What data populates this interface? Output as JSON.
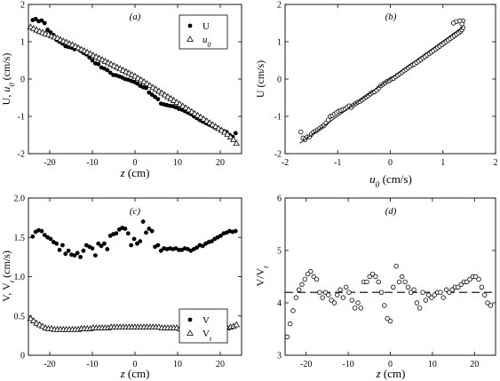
{
  "chart_data": [
    {
      "id": "a",
      "type": "scatter",
      "panel_label": "(a)",
      "xlabel": "z (cm)",
      "ylabel": "U, u0 (cm/s)",
      "xlim": [
        -25,
        25
      ],
      "ylim": [
        -2,
        2
      ],
      "xticks": [
        -20,
        -10,
        0,
        10,
        20
      ],
      "yticks": [
        -2,
        -1,
        0,
        1,
        2
      ],
      "legend": {
        "placement": "top-right",
        "entries": [
          {
            "label": "U",
            "marker": "filled-circle"
          },
          {
            "label": "u0",
            "marker": "open-triangle",
            "italic": true
          }
        ]
      },
      "series": [
        {
          "name": "U",
          "marker": "filled-circle",
          "x": [
            -24.0,
            -23.3,
            -22.6,
            -21.9,
            -21.2,
            -20.5,
            -19.8,
            -19.1,
            -18.4,
            -17.7,
            -17.0,
            -16.3,
            -15.6,
            -14.9,
            -14.2,
            -13.5,
            -12.8,
            -12.1,
            -11.4,
            -10.7,
            -10.0,
            -9.3,
            -8.6,
            -7.9,
            -7.2,
            -6.5,
            -5.8,
            -5.1,
            -4.4,
            -3.7,
            -3.0,
            -2.3,
            -1.6,
            -0.9,
            -0.2,
            0.5,
            1.2,
            1.9,
            2.6,
            3.3,
            4.0,
            4.7,
            5.4,
            6.1,
            6.8,
            7.5,
            8.2,
            8.9,
            9.6,
            10.3,
            11.0,
            11.7,
            12.4,
            13.1,
            13.8,
            14.5,
            15.2,
            15.9,
            16.6,
            17.3,
            18.0,
            18.7,
            19.4,
            20.1,
            20.8,
            21.5,
            22.2,
            22.9,
            23.6
          ],
          "y": [
            1.58,
            1.61,
            1.55,
            1.57,
            1.5,
            1.32,
            1.25,
            1.18,
            1.05,
            1.0,
            0.95,
            0.88,
            0.86,
            0.84,
            0.8,
            0.82,
            0.76,
            0.7,
            0.66,
            0.58,
            0.5,
            0.42,
            0.4,
            0.31,
            0.28,
            0.24,
            0.17,
            0.11,
            0.1,
            0.07,
            0.04,
            0.0,
            -0.02,
            -0.05,
            -0.08,
            -0.12,
            -0.18,
            -0.22,
            -0.24,
            -0.36,
            -0.42,
            -0.48,
            -0.54,
            -0.66,
            -0.68,
            -0.7,
            -0.72,
            -0.73,
            -0.76,
            -0.8,
            -0.82,
            -0.86,
            -0.9,
            -0.94,
            -1.0,
            -1.05,
            -1.1,
            -1.14,
            -1.18,
            -1.22,
            -1.25,
            -1.3,
            -1.32,
            -1.36,
            -1.4,
            -1.42,
            -1.5,
            -1.55,
            -1.45
          ]
        },
        {
          "name": "u0",
          "marker": "open-triangle",
          "x": [
            -24.5,
            -23.8,
            -23.1,
            -22.4,
            -21.7,
            -21.0,
            -20.3,
            -19.6,
            -18.9,
            -18.2,
            -17.5,
            -16.8,
            -16.1,
            -15.4,
            -14.7,
            -14.0,
            -13.3,
            -12.6,
            -11.9,
            -11.2,
            -10.5,
            -9.8,
            -9.1,
            -8.4,
            -7.7,
            -7.0,
            -6.3,
            -5.6,
            -4.9,
            -4.2,
            -3.5,
            -2.8,
            -2.1,
            -1.4,
            -0.7,
            0.0,
            0.7,
            1.4,
            2.1,
            2.8,
            3.5,
            4.2,
            4.9,
            5.6,
            6.3,
            7.0,
            7.7,
            8.4,
            9.1,
            9.8,
            10.5,
            11.2,
            11.9,
            12.6,
            13.3,
            14.0,
            14.7,
            15.4,
            16.1,
            16.8,
            17.5,
            18.2,
            18.9,
            19.6,
            20.3,
            21.0,
            21.7,
            22.4,
            23.1,
            23.8
          ],
          "y": [
            1.4,
            1.36,
            1.32,
            1.28,
            1.25,
            1.22,
            1.2,
            1.16,
            1.13,
            1.1,
            1.06,
            1.02,
            0.99,
            0.95,
            0.92,
            0.88,
            0.84,
            0.8,
            0.76,
            0.72,
            0.68,
            0.64,
            0.6,
            0.56,
            0.52,
            0.48,
            0.44,
            0.4,
            0.36,
            0.32,
            0.28,
            0.24,
            0.2,
            0.16,
            0.12,
            0.08,
            0.03,
            -0.02,
            -0.07,
            -0.12,
            -0.17,
            -0.22,
            -0.27,
            -0.32,
            -0.37,
            -0.42,
            -0.47,
            -0.52,
            -0.57,
            -0.62,
            -0.67,
            -0.72,
            -0.77,
            -0.82,
            -0.87,
            -0.92,
            -0.97,
            -1.02,
            -1.07,
            -1.12,
            -1.17,
            -1.22,
            -1.27,
            -1.32,
            -1.37,
            -1.42,
            -1.48,
            -1.55,
            -1.62,
            -1.72
          ]
        }
      ]
    },
    {
      "id": "b",
      "type": "scatter",
      "panel_label": "(b)",
      "xlabel": "u0 (cm/s)",
      "ylabel": "U (cm/s)",
      "xlim": [
        -2,
        2
      ],
      "ylim": [
        -2,
        2
      ],
      "xticks": [
        -2,
        -1,
        0,
        1,
        2
      ],
      "yticks": [
        -2,
        -1,
        0,
        1,
        2
      ],
      "series": [
        {
          "name": "U vs u0",
          "marker": "open-circle",
          "x": [
            -1.7,
            -1.66,
            -1.62,
            -1.58,
            -1.54,
            -1.5,
            -1.46,
            -1.42,
            -1.38,
            -1.34,
            -1.3,
            -1.26,
            -1.22,
            -1.18,
            -1.14,
            -1.1,
            -1.06,
            -1.02,
            -0.98,
            -0.94,
            -0.9,
            -0.86,
            -0.82,
            -0.78,
            -0.74,
            -0.7,
            -0.66,
            -0.62,
            -0.58,
            -0.54,
            -0.5,
            -0.46,
            -0.42,
            -0.38,
            -0.34,
            -0.3,
            -0.26,
            -0.22,
            -0.18,
            -0.14,
            -0.1,
            -0.06,
            -0.02,
            0.02,
            0.06,
            0.1,
            0.14,
            0.18,
            0.22,
            0.26,
            0.3,
            0.34,
            0.38,
            0.42,
            0.46,
            0.5,
            0.54,
            0.58,
            0.62,
            0.66,
            0.7,
            0.74,
            0.78,
            0.82,
            0.86,
            0.9,
            0.94,
            0.98,
            1.02,
            1.06,
            1.1,
            1.14,
            1.18,
            1.22,
            1.26,
            1.3,
            1.34,
            1.36,
            1.38,
            1.38,
            1.36,
            1.32,
            1.25,
            1.2
          ],
          "y": [
            -1.42,
            -1.58,
            -1.62,
            -1.55,
            -1.55,
            -1.48,
            -1.42,
            -1.4,
            -1.36,
            -1.32,
            -1.28,
            -1.25,
            -1.18,
            -1.1,
            -1.0,
            -0.98,
            -0.94,
            -0.9,
            -0.86,
            -0.84,
            -0.82,
            -0.8,
            -0.76,
            -0.72,
            -0.76,
            -0.7,
            -0.66,
            -0.62,
            -0.6,
            -0.56,
            -0.52,
            -0.48,
            -0.44,
            -0.4,
            -0.36,
            -0.34,
            -0.3,
            -0.24,
            -0.18,
            -0.14,
            -0.1,
            -0.06,
            -0.04,
            0.0,
            0.02,
            0.06,
            0.1,
            0.14,
            0.18,
            0.22,
            0.26,
            0.3,
            0.34,
            0.38,
            0.4,
            0.44,
            0.48,
            0.52,
            0.56,
            0.6,
            0.64,
            0.68,
            0.72,
            0.76,
            0.8,
            0.84,
            0.88,
            0.92,
            0.96,
            1.0,
            1.04,
            1.08,
            1.12,
            1.16,
            1.2,
            1.24,
            1.28,
            1.32,
            1.38,
            1.56,
            1.48,
            1.56,
            1.54,
            1.5
          ]
        },
        {
          "name": "fit",
          "marker": "line",
          "x": [
            -1.72,
            1.38
          ],
          "y": [
            -1.72,
            1.4
          ]
        }
      ]
    },
    {
      "id": "c",
      "type": "scatter",
      "panel_label": "(c)",
      "xlabel": "z (cm)",
      "ylabel": "V, Vt (cm/s)",
      "xlim": [
        -25,
        25
      ],
      "ylim": [
        0,
        2
      ],
      "xticks": [
        -20,
        -10,
        0,
        10,
        20
      ],
      "yticks": [
        0,
        0.5,
        1.0,
        1.5,
        2.0
      ],
      "ytick_labels": [
        "0",
        "0.5",
        "1.0",
        "1.5",
        "2.0"
      ],
      "legend": {
        "placement": "bottom-right",
        "entries": [
          {
            "label": "V",
            "marker": "filled-circle"
          },
          {
            "label": "Vt",
            "marker": "open-triangle",
            "italic_subscript": true
          }
        ]
      },
      "series": [
        {
          "name": "V",
          "marker": "filled-circle",
          "x": [
            -24.0,
            -23.3,
            -22.6,
            -21.9,
            -21.2,
            -20.5,
            -19.8,
            -19.1,
            -18.4,
            -17.7,
            -17.0,
            -16.3,
            -15.6,
            -14.9,
            -14.2,
            -13.5,
            -12.8,
            -12.1,
            -11.4,
            -10.7,
            -10.0,
            -9.3,
            -8.6,
            -7.9,
            -7.2,
            -6.5,
            -5.8,
            -5.1,
            -4.4,
            -3.7,
            -3.0,
            -2.3,
            -1.6,
            -0.9,
            -0.2,
            0.5,
            1.2,
            1.9,
            2.6,
            3.3,
            4.0,
            4.7,
            5.4,
            6.1,
            6.8,
            7.5,
            8.2,
            8.9,
            9.6,
            10.3,
            11.0,
            11.7,
            12.4,
            13.1,
            13.8,
            14.5,
            15.2,
            15.9,
            16.6,
            17.3,
            18.0,
            18.7,
            19.4,
            20.1,
            20.8,
            21.5,
            22.2,
            22.9,
            23.6
          ],
          "y": [
            1.51,
            1.57,
            1.59,
            1.58,
            1.53,
            1.5,
            1.48,
            1.44,
            1.42,
            1.34,
            1.4,
            1.29,
            1.33,
            1.28,
            1.27,
            1.3,
            1.25,
            1.33,
            1.4,
            1.38,
            1.36,
            1.27,
            1.42,
            1.39,
            1.42,
            1.35,
            1.52,
            1.54,
            1.55,
            1.6,
            1.62,
            1.61,
            1.55,
            1.4,
            1.48,
            1.42,
            1.45,
            1.7,
            1.56,
            1.61,
            1.58,
            1.38,
            1.4,
            1.33,
            1.36,
            1.35,
            1.36,
            1.35,
            1.36,
            1.34,
            1.34,
            1.36,
            1.35,
            1.33,
            1.35,
            1.37,
            1.4,
            1.39,
            1.42,
            1.44,
            1.45,
            1.48,
            1.5,
            1.52,
            1.55,
            1.56,
            1.58,
            1.57,
            1.58
          ]
        },
        {
          "name": "Vt",
          "marker": "open-triangle",
          "x": [
            -24.5,
            -23.8,
            -23.1,
            -22.4,
            -21.7,
            -21.0,
            -20.3,
            -19.6,
            -18.9,
            -18.2,
            -17.5,
            -16.8,
            -16.1,
            -15.4,
            -14.7,
            -14.0,
            -13.3,
            -12.6,
            -11.9,
            -11.2,
            -10.5,
            -9.8,
            -9.1,
            -8.4,
            -7.7,
            -7.0,
            -6.3,
            -5.6,
            -4.9,
            -4.2,
            -3.5,
            -2.8,
            -2.1,
            -1.4,
            -0.7,
            0.0,
            0.7,
            1.4,
            2.1,
            2.8,
            3.5,
            4.2,
            4.9,
            5.6,
            6.3,
            7.0,
            7.7,
            8.4,
            9.1,
            9.8,
            10.5,
            11.2,
            11.9,
            12.6,
            13.3,
            14.0,
            14.7,
            15.4,
            16.1,
            16.8,
            17.5,
            18.2,
            18.9,
            19.6,
            20.3,
            21.0,
            21.7,
            22.4,
            23.1,
            23.8
          ],
          "y": [
            0.47,
            0.44,
            0.41,
            0.39,
            0.37,
            0.35,
            0.34,
            0.34,
            0.33,
            0.33,
            0.33,
            0.33,
            0.33,
            0.33,
            0.33,
            0.33,
            0.33,
            0.34,
            0.34,
            0.34,
            0.34,
            0.35,
            0.35,
            0.35,
            0.35,
            0.35,
            0.35,
            0.36,
            0.36,
            0.36,
            0.36,
            0.36,
            0.36,
            0.36,
            0.36,
            0.36,
            0.36,
            0.36,
            0.36,
            0.36,
            0.36,
            0.36,
            0.36,
            0.36,
            0.35,
            0.35,
            0.35,
            0.35,
            0.35,
            0.35,
            0.34,
            0.34,
            0.34,
            0.34,
            0.34,
            0.34,
            0.34,
            0.34,
            0.33,
            0.33,
            0.33,
            0.33,
            0.33,
            0.34,
            0.34,
            0.34,
            0.35,
            0.36,
            0.37,
            0.39
          ]
        }
      ]
    },
    {
      "id": "d",
      "type": "scatter",
      "panel_label": "(d)",
      "xlabel": "z (cm)",
      "ylabel": "V/Vt",
      "xlim": [
        -25,
        25
      ],
      "ylim": [
        3,
        6
      ],
      "xticks": [
        -20,
        -10,
        0,
        10,
        20
      ],
      "yticks": [
        3,
        4,
        5,
        6
      ],
      "reference_line": {
        "y": 4.2,
        "style": "dashed"
      },
      "series": [
        {
          "name": "V/Vt",
          "marker": "open-circle",
          "x": [
            -24.5,
            -23.8,
            -23.1,
            -22.4,
            -21.7,
            -21.0,
            -20.3,
            -19.6,
            -18.9,
            -18.2,
            -17.5,
            -16.8,
            -16.1,
            -15.4,
            -14.7,
            -14.0,
            -13.3,
            -12.6,
            -11.9,
            -11.2,
            -10.5,
            -9.8,
            -9.1,
            -8.4,
            -7.7,
            -7.0,
            -6.3,
            -5.6,
            -4.9,
            -4.2,
            -3.5,
            -2.8,
            -2.1,
            -1.4,
            -0.7,
            0.0,
            0.7,
            1.4,
            2.1,
            2.8,
            3.5,
            4.2,
            4.9,
            5.6,
            6.3,
            7.0,
            7.7,
            8.4,
            9.1,
            9.8,
            10.5,
            11.2,
            11.9,
            12.6,
            13.3,
            14.0,
            14.7,
            15.4,
            16.1,
            16.8,
            17.5,
            18.2,
            18.9,
            19.6,
            20.3,
            21.0,
            21.7,
            22.4,
            23.1,
            23.8
          ],
          "y": [
            3.35,
            3.6,
            3.85,
            4.1,
            4.25,
            4.35,
            4.45,
            4.55,
            4.6,
            4.5,
            4.45,
            4.2,
            4.1,
            4.2,
            4.15,
            4.05,
            4.0,
            4.15,
            4.25,
            4.1,
            4.3,
            4.2,
            4.05,
            3.9,
            4.0,
            3.9,
            4.4,
            4.4,
            4.5,
            4.55,
            4.5,
            4.4,
            4.2,
            3.95,
            3.7,
            3.65,
            4.3,
            4.7,
            4.4,
            4.5,
            4.4,
            4.3,
            4.2,
            4.25,
            4.0,
            3.9,
            4.2,
            4.05,
            4.15,
            4.1,
            4.15,
            4.2,
            4.2,
            4.1,
            4.25,
            4.2,
            4.25,
            4.3,
            4.3,
            4.35,
            4.4,
            4.4,
            4.45,
            4.5,
            4.5,
            4.45,
            4.3,
            4.15,
            4.0,
            3.95
          ]
        }
      ]
    }
  ]
}
